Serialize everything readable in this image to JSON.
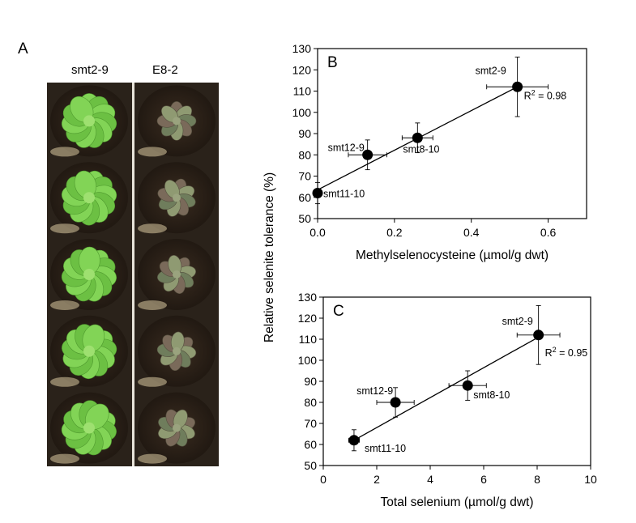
{
  "panel_a": {
    "letter": "A",
    "left_label": "smt2-9",
    "right_label": "E8-2"
  },
  "shared": {
    "ylabel": "Relative selenite tolerance (%)"
  },
  "chart_data": [
    {
      "panel": "B",
      "type": "scatter",
      "xlabel": "Methylselenocysteine (µmol/g dwt)",
      "xlim": [
        0,
        0.7
      ],
      "xticks": [
        0.0,
        0.2,
        0.4,
        0.6
      ],
      "xtick_labels": [
        "0.0",
        "0.2",
        "0.4",
        "0.6"
      ],
      "ylim": [
        50,
        130
      ],
      "yticks": [
        50,
        60,
        70,
        80,
        90,
        100,
        110,
        120,
        130
      ],
      "points": [
        {
          "label": "smt11-10",
          "x": 0.0,
          "y": 62,
          "xerr": 0.005,
          "yerr": 5
        },
        {
          "label": "smt12-9",
          "x": 0.13,
          "y": 80,
          "xerr": 0.05,
          "yerr": 7
        },
        {
          "label": "smt8-10",
          "x": 0.26,
          "y": 88,
          "xerr": 0.04,
          "yerr": 7
        },
        {
          "label": "smt2-9",
          "x": 0.52,
          "y": 112,
          "xerr": 0.08,
          "yerr": 14
        }
      ],
      "trendline": {
        "x": [
          0.0,
          0.52
        ],
        "y": [
          63.5,
          112
        ]
      },
      "r2_text": "R² = 0.98"
    },
    {
      "panel": "C",
      "type": "scatter",
      "xlabel": "Total selenium (µmol/g dwt)",
      "xlim": [
        0,
        10
      ],
      "xticks": [
        0,
        2,
        4,
        6,
        8,
        10
      ],
      "xtick_labels": [
        "0",
        "2",
        "4",
        "6",
        "8",
        "10"
      ],
      "ylim": [
        50,
        130
      ],
      "yticks": [
        50,
        60,
        70,
        80,
        90,
        100,
        110,
        120,
        130
      ],
      "points": [
        {
          "label": "smt11-10",
          "x": 1.15,
          "y": 62,
          "xerr": 0.2,
          "yerr": 5
        },
        {
          "label": "smt12-9",
          "x": 2.7,
          "y": 80,
          "xerr": 0.7,
          "yerr": 7
        },
        {
          "label": "smt8-10",
          "x": 5.4,
          "y": 88,
          "xerr": 0.7,
          "yerr": 7
        },
        {
          "label": "smt2-9",
          "x": 8.05,
          "y": 112,
          "xerr": 0.8,
          "yerr": 14
        }
      ],
      "trendline": {
        "x": [
          1.15,
          8.05
        ],
        "y": [
          62,
          111
        ]
      },
      "r2_text": "R² = 0.95"
    }
  ]
}
